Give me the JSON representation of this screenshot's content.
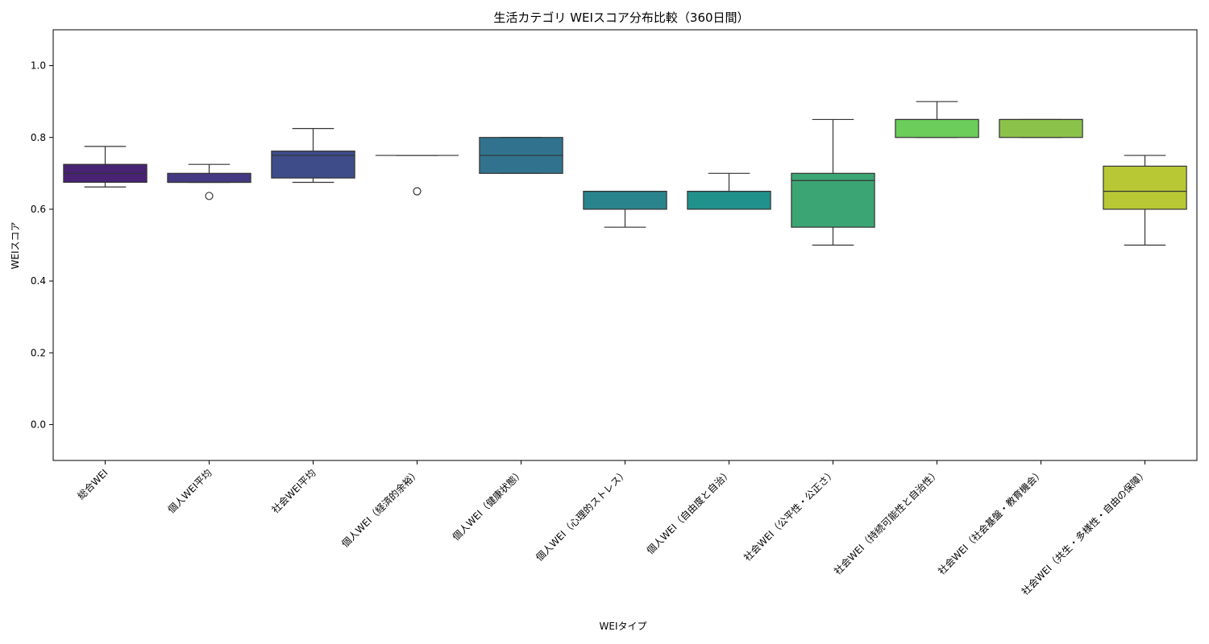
{
  "chart_data": {
    "type": "box",
    "title": "生活カテゴリ WEIスコア分布比較（360日間）",
    "xlabel": "WEIタイプ",
    "ylabel": "WEIスコア",
    "ylim": [
      -0.1,
      1.1
    ],
    "yticks": [
      0.0,
      0.2,
      0.4,
      0.6,
      0.8,
      1.0
    ],
    "ytick_labels": [
      "0.0",
      "0.2",
      "0.4",
      "0.6",
      "0.8",
      "1.0"
    ],
    "grid": false,
    "legend": "none",
    "categories": [
      "総合WEI",
      "個人WEI平均",
      "社会WEI平均",
      "個人WEI（経済的余裕）",
      "個人WEI（健康状態）",
      "個人WEI（心理的ストレス）",
      "個人WEI（自由度と自治）",
      "社会WEI（公平性・公正さ）",
      "社会WEI（持続可能性と自治性）",
      "社会WEI（社会基盤・教育機会）",
      "社会WEI（共生・多様性・自由の保障）"
    ],
    "boxes": [
      {
        "whisker_low": 0.662,
        "q1": 0.675,
        "median": 0.7,
        "q3": 0.725,
        "whisker_high": 0.775,
        "outliers": [],
        "color": "#482374"
      },
      {
        "whisker_low": 0.675,
        "q1": 0.675,
        "median": 0.675,
        "q3": 0.7,
        "whisker_high": 0.725,
        "outliers": [
          0.637
        ],
        "color": "#443a83"
      },
      {
        "whisker_low": 0.675,
        "q1": 0.687,
        "median": 0.75,
        "q3": 0.762,
        "whisker_high": 0.825,
        "outliers": [],
        "color": "#3e4c8a"
      },
      {
        "whisker_low": 0.75,
        "q1": 0.75,
        "median": 0.75,
        "q3": 0.75,
        "whisker_high": 0.75,
        "outliers": [
          0.65
        ],
        "color": "#345f8d"
      },
      {
        "whisker_low": 0.7,
        "q1": 0.7,
        "median": 0.75,
        "q3": 0.8,
        "whisker_high": 0.8,
        "outliers": [],
        "color": "#31738e"
      },
      {
        "whisker_low": 0.55,
        "q1": 0.6,
        "median": 0.65,
        "q3": 0.65,
        "whisker_high": 0.65,
        "outliers": [],
        "color": "#2a848e"
      },
      {
        "whisker_low": 0.6,
        "q1": 0.6,
        "median": 0.65,
        "q3": 0.65,
        "whisker_high": 0.7,
        "outliers": [],
        "color": "#21918c"
      },
      {
        "whisker_low": 0.5,
        "q1": 0.55,
        "median": 0.68,
        "q3": 0.7,
        "whisker_high": 0.85,
        "outliers": [],
        "color": "#3ba674"
      },
      {
        "whisker_low": 0.8,
        "q1": 0.8,
        "median": 0.85,
        "q3": 0.85,
        "whisker_high": 0.9,
        "outliers": [],
        "color": "#6ccd5a"
      },
      {
        "whisker_low": 0.8,
        "q1": 0.8,
        "median": 0.85,
        "q3": 0.85,
        "whisker_high": 0.85,
        "outliers": [],
        "color": "#8bc34a"
      },
      {
        "whisker_low": 0.5,
        "q1": 0.6,
        "median": 0.65,
        "q3": 0.72,
        "whisker_high": 0.75,
        "outliers": [],
        "color": "#b8c835"
      }
    ]
  }
}
